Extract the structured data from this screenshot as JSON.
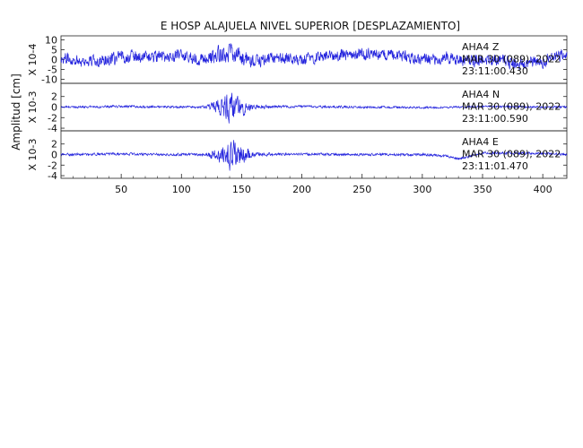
{
  "chart_data": {
    "type": "line",
    "title": "E HOSP ALAJUELA NIVEL SUPERIOR [DESPLAZAMIENTO]",
    "ylabel": "Amplitud [cm]",
    "xlim": [
      0,
      420
    ],
    "xticks": [
      50,
      100,
      150,
      200,
      250,
      300,
      350,
      400
    ],
    "line_color": "#2222dd",
    "panels": [
      {
        "scale_label": "X  10-4",
        "ylim": [
          -12,
          12
        ],
        "yticks": [
          10,
          5,
          0,
          -5,
          -10
        ],
        "ytick_labels": [
          "10",
          "5",
          "0",
          "-5",
          "-10"
        ],
        "station": "AHA4",
        "channel": "Z",
        "date": "MAR 30 (089), 2022",
        "time": "23:11:00.430",
        "profile_x": [
          0,
          10,
          20,
          40,
          60,
          80,
          100,
          120,
          130,
          140,
          150,
          160,
          180,
          200,
          220,
          250,
          280,
          300,
          320,
          330,
          340,
          360,
          380,
          400,
          410,
          420
        ],
        "profile_y": [
          1,
          0,
          -1,
          0,
          2,
          1,
          2,
          0,
          2,
          4,
          1,
          -1,
          1,
          0,
          2,
          3,
          2,
          0,
          1,
          0,
          -1,
          0,
          -2,
          -1,
          3,
          2
        ],
        "noise_x": [
          0,
          50,
          100,
          120,
          130,
          140,
          150,
          160,
          200,
          300,
          400,
          420
        ],
        "noise_amp": [
          4,
          4,
          4,
          4,
          6,
          7,
          5,
          4,
          4,
          4,
          4,
          4
        ]
      },
      {
        "scale_label": "X  10-3",
        "ylim": [
          -4.5,
          4.5
        ],
        "yticks": [
          2,
          0,
          -2,
          -4
        ],
        "ytick_labels": [
          "2",
          "0",
          "-2",
          "-4"
        ],
        "station": "AHA4",
        "channel": "N",
        "date": "MAR 30 (089), 2022",
        "time": "23:11:00.590",
        "profile_x": [
          0,
          50,
          100,
          150,
          200,
          250,
          300,
          330,
          350,
          400,
          420
        ],
        "profile_y": [
          0,
          0.1,
          0,
          0,
          0.1,
          0,
          -0.1,
          0,
          0.1,
          0,
          0
        ],
        "noise_x": [
          0,
          50,
          100,
          120,
          130,
          140,
          145,
          150,
          160,
          180,
          200,
          300,
          400,
          420
        ],
        "noise_amp": [
          0.25,
          0.3,
          0.25,
          0.3,
          1.8,
          3.5,
          3.0,
          2.2,
          0.6,
          0.3,
          0.3,
          0.25,
          0.25,
          0.25
        ]
      },
      {
        "scale_label": "X  10-3",
        "ylim": [
          -4.5,
          4.5
        ],
        "yticks": [
          2,
          0,
          -2,
          -4
        ],
        "ytick_labels": [
          "2",
          "0",
          "-2",
          "-4"
        ],
        "station": "AHA4",
        "channel": "E",
        "date": "MAR 30 (089), 2022",
        "time": "23:11:01.470",
        "profile_x": [
          0,
          50,
          100,
          150,
          200,
          250,
          300,
          320,
          330,
          340,
          350,
          400,
          420
        ],
        "profile_y": [
          0,
          0.1,
          0,
          0,
          0.1,
          0,
          0,
          -0.3,
          -0.8,
          -0.3,
          0.3,
          0.2,
          0
        ],
        "noise_x": [
          0,
          50,
          100,
          120,
          130,
          140,
          145,
          150,
          160,
          180,
          200,
          300,
          400,
          420
        ],
        "noise_amp": [
          0.3,
          0.3,
          0.3,
          0.3,
          1.8,
          3.6,
          3.2,
          2.3,
          0.6,
          0.3,
          0.3,
          0.3,
          0.3,
          0.3
        ]
      }
    ]
  }
}
